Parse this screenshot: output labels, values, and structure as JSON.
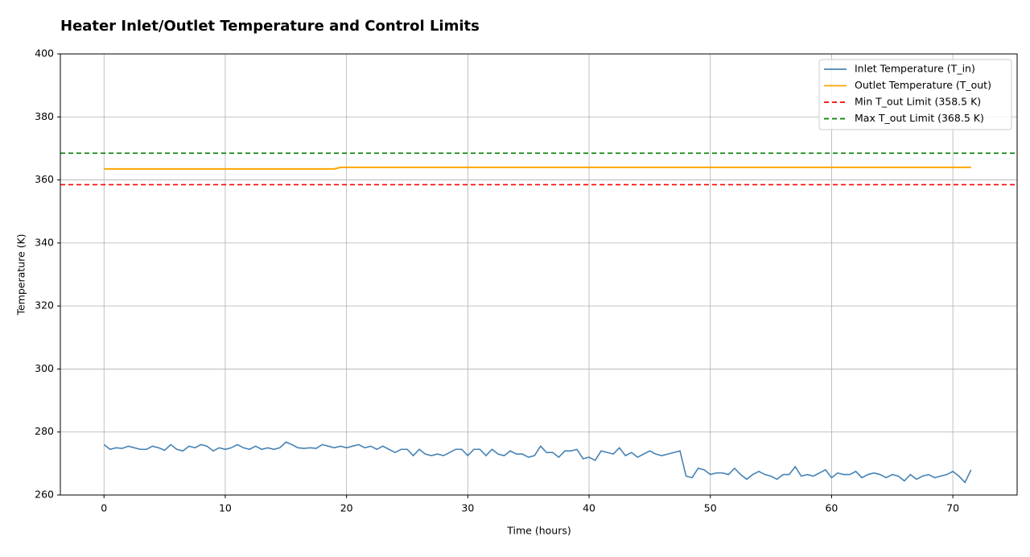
{
  "chart_data": {
    "type": "line",
    "title": "Heater Inlet/Outlet Temperature and Control Limits",
    "x_label": "Time (hours)",
    "y_label": "Temperature (K)",
    "xlim": [
      -3.6,
      75.3
    ],
    "xticks": [
      0,
      10,
      20,
      30,
      40,
      50,
      60,
      70
    ],
    "ylim": [
      260,
      400
    ],
    "yticks": [
      260,
      280,
      300,
      320,
      340,
      360,
      380,
      400
    ],
    "grid": true,
    "legend": "upper right",
    "x": [
      0,
      0.5,
      1,
      1.5,
      2,
      2.5,
      3,
      3.5,
      4,
      4.5,
      5,
      5.5,
      6,
      6.5,
      7,
      7.5,
      8,
      8.5,
      9,
      9.5,
      10,
      10.5,
      11,
      11.5,
      12,
      12.5,
      13,
      13.5,
      14,
      14.5,
      15,
      15.5,
      16,
      16.5,
      17,
      17.5,
      18,
      18.5,
      19,
      19.5,
      20,
      20.5,
      21,
      21.5,
      22,
      22.5,
      23,
      23.5,
      24,
      24.5,
      25,
      25.5,
      26,
      26.5,
      27,
      27.5,
      28,
      28.5,
      29,
      29.5,
      30,
      30.5,
      31,
      31.5,
      32,
      32.5,
      33,
      33.5,
      34,
      34.5,
      35,
      35.5,
      36,
      36.5,
      37,
      37.5,
      38,
      38.5,
      39,
      39.5,
      40,
      40.5,
      41,
      41.5,
      42,
      42.5,
      43,
      43.5,
      44,
      44.5,
      45,
      45.5,
      46,
      46.5,
      47,
      47.5,
      48,
      48.5,
      49,
      49.5,
      50,
      50.5,
      51,
      51.5,
      52,
      52.5,
      53,
      53.5,
      54,
      54.5,
      55,
      55.5,
      56,
      56.5,
      57,
      57.5,
      58,
      58.5,
      59,
      59.5,
      60,
      60.5,
      61,
      61.5,
      62,
      62.5,
      63,
      63.5,
      64,
      64.5,
      65,
      65.5,
      66,
      66.5,
      67,
      67.5,
      68,
      68.5,
      69,
      69.5,
      70,
      70.5,
      71,
      71.5
    ],
    "series": [
      {
        "name": "Inlet Temperature (T_in)",
        "color": "#4682b4",
        "dash": false,
        "values": [
          276,
          274.5,
          275,
          274.8,
          275.5,
          275,
          274.5,
          274.5,
          275.5,
          275,
          274.2,
          276,
          274.5,
          274,
          275.5,
          275,
          276,
          275.5,
          274,
          275,
          274.5,
          275,
          276,
          275,
          274.5,
          275.5,
          274.5,
          275,
          274.5,
          275,
          276.8,
          276,
          275,
          274.8,
          275,
          274.8,
          276,
          275.5,
          275,
          275.5,
          275,
          275.5,
          276,
          275,
          275.5,
          274.5,
          275.5,
          274.5,
          273.5,
          274.5,
          274.5,
          272.5,
          274.5,
          273,
          272.5,
          273,
          272.5,
          273.5,
          274.5,
          274.5,
          272.5,
          274.5,
          274.5,
          272.5,
          274.5,
          273,
          272.5,
          274,
          273,
          273,
          272,
          272.5,
          275.5,
          273.5,
          273.5,
          272,
          274,
          274,
          274.5,
          271.5,
          272,
          271,
          274,
          273.5,
          273,
          275,
          272.5,
          273.5,
          272,
          273,
          274,
          273,
          272.5,
          273,
          273.5,
          274,
          266,
          265.5,
          268.5,
          268,
          266.5,
          267,
          267,
          266.5,
          268.5,
          266.5,
          265,
          266.5,
          267.5,
          266.5,
          266,
          265,
          266.5,
          266.5,
          269,
          266,
          266.5,
          266,
          267,
          268,
          265.5,
          267,
          266.5,
          266.5,
          267.5,
          265.5,
          266.5,
          267,
          266.5,
          265.5,
          266.5,
          266,
          264.5,
          266.5,
          265,
          266,
          266.5,
          265.5,
          266,
          266.5,
          267.5,
          266,
          264,
          268
        ]
      },
      {
        "name": "Outlet Temperature (T_out)",
        "color": "#ffa500",
        "dash": false,
        "values": [
          363.5,
          363.5,
          363.5,
          363.5,
          363.5,
          363.5,
          363.5,
          363.5,
          363.5,
          363.5,
          363.5,
          363.5,
          363.5,
          363.5,
          363.5,
          363.5,
          363.5,
          363.5,
          363.5,
          363.5,
          363.5,
          363.5,
          363.5,
          363.5,
          363.5,
          363.5,
          363.5,
          363.5,
          363.5,
          363.5,
          363.5,
          363.5,
          363.5,
          363.5,
          363.5,
          363.5,
          363.5,
          363.5,
          363.5,
          364,
          364,
          364,
          364,
          364,
          364,
          364,
          364,
          364,
          364,
          364,
          364,
          364,
          364,
          364,
          364,
          364,
          364,
          364,
          364,
          364,
          364,
          364,
          364,
          364,
          364,
          364,
          364,
          364,
          364,
          364,
          364,
          364,
          364,
          364,
          364,
          364,
          364,
          364,
          364,
          364,
          364,
          364,
          364,
          364,
          364,
          364,
          364,
          364,
          364,
          364,
          364,
          364,
          364,
          364,
          364,
          364,
          364,
          364,
          364,
          364,
          364,
          364,
          364,
          364,
          364,
          364,
          364,
          364,
          364,
          364,
          364,
          364,
          364,
          364,
          364,
          364,
          364,
          364,
          364,
          364,
          364,
          364,
          364,
          364,
          364,
          364,
          364,
          364,
          364,
          364,
          364,
          364,
          364,
          364,
          364,
          364,
          364,
          364,
          364,
          364,
          364,
          364,
          364,
          364
        ]
      }
    ],
    "reference_lines": [
      {
        "name": "Min T_out Limit (358.5 K)",
        "color": "#ff0000",
        "value": 358.5,
        "dash": true
      },
      {
        "name": "Max T_out Limit (368.5 K)",
        "color": "#008000",
        "value": 368.5,
        "dash": true
      }
    ]
  }
}
